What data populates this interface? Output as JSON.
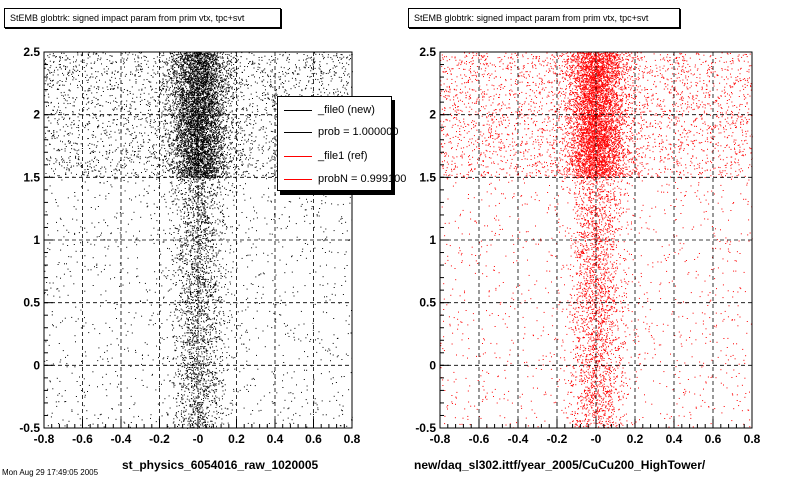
{
  "panels": [
    {
      "title": "StEMB globtrk: signed impact param from prim vtx, tpc+svt",
      "xtitle": "st_physics_6054016_raw_1020005"
    },
    {
      "title": "StEMB globtrk: signed impact param from prim vtx, tpc+svt",
      "xtitle": "new/daq_sl302.ittf/year_2005/CuCu200_HighTower/"
    }
  ],
  "legend": {
    "rows": [
      {
        "label": "_file0 (new)",
        "color": "#000000"
      },
      {
        "label": "prob = 1.000000",
        "color": "#000000"
      },
      {
        "label": "_file1 (ref)",
        "color": "#ff0000"
      },
      {
        "label": "probN = 0.999100",
        "color": "#ff0000"
      }
    ]
  },
  "footer": "Mon Aug 29 17:49:05 2005",
  "chart_data": [
    {
      "type": "scatter",
      "title": "StEMB globtrk: signed impact param from prim vtx, tpc+svt",
      "xlabel": "st_physics_6054016_raw_1020005",
      "ylabel": "",
      "xlim": [
        -0.8,
        0.8
      ],
      "ylim": [
        -0.5,
        2.5
      ],
      "xticks": [
        "-0.8",
        "-0.6",
        "-0.4",
        "-0.2",
        "-0",
        "0.2",
        "0.4",
        "0.6",
        "0.8"
      ],
      "yticks": [
        "-0.5",
        "0",
        "0.5",
        "1",
        "1.5",
        "2",
        "2.5"
      ],
      "grid": true,
      "series": [
        {
          "name": "_file0 (new)",
          "color": "#000000"
        }
      ],
      "distribution": {
        "x_center": 0.0,
        "core_sigma": 0.07,
        "dense_band_y": [
          1.5,
          2.5
        ]
      }
    },
    {
      "type": "scatter",
      "title": "StEMB globtrk: signed impact param from prim vtx, tpc+svt",
      "xlabel": "new/daq_sl302.ittf/year_2005/CuCu200_HighTower/",
      "ylabel": "",
      "xlim": [
        -0.8,
        0.8
      ],
      "ylim": [
        -0.5,
        2.5
      ],
      "xticks": [
        "-0.8",
        "-0.6",
        "-0.4",
        "-0.2",
        "-0",
        "0.2",
        "0.4",
        "0.6",
        "0.8"
      ],
      "yticks": [
        "-0.5",
        "0",
        "0.5",
        "1",
        "1.5",
        "2",
        "2.5"
      ],
      "grid": true,
      "series": [
        {
          "name": "_file1 (ref)",
          "color": "#ff0000"
        }
      ],
      "distribution": {
        "x_center": 0.0,
        "core_sigma": 0.07,
        "dense_band_y": [
          1.5,
          2.5
        ]
      }
    }
  ]
}
